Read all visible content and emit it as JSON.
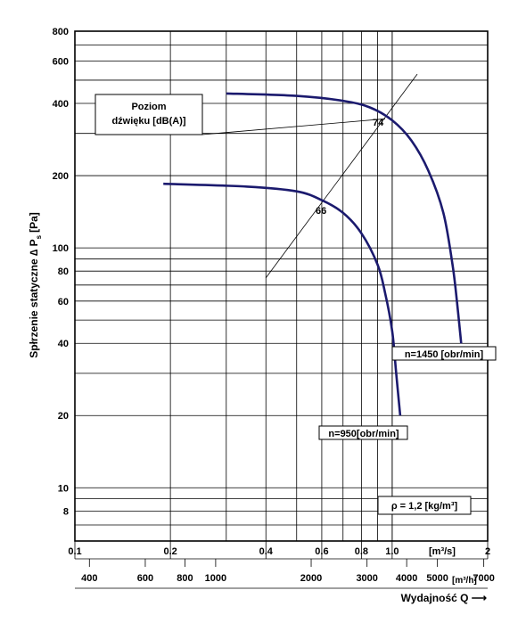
{
  "chart_data": {
    "type": "line",
    "ylabel_main": "Spłrzenie statyczne ∆ P",
    "ylabel_sub": "s",
    "ylabel_unit": "[Pa]",
    "xlabel": "Wydajność Q ⟶",
    "x_unit_top": "[m³/s]",
    "x_unit_bottom": "[m³/h]",
    "y_scale": "log",
    "x_scale": "log",
    "ylim": [
      6,
      800
    ],
    "xlim": [
      0.1,
      2
    ],
    "y_ticks": [
      "800",
      "600",
      "400",
      "200",
      "100",
      "80",
      "60",
      "40",
      "20",
      "10",
      "8"
    ],
    "x_ticks_top": [
      "0.1",
      "0.2",
      "0.4",
      "0.6",
      "0.8",
      "1.0",
      "2"
    ],
    "x_ticks_bottom": [
      "400",
      "600",
      "800",
      "1000",
      "2000",
      "3000",
      "4000",
      "5000",
      "7000"
    ],
    "series": [
      {
        "name": "n=1450 [obr/min]",
        "color": "#1b1a6e",
        "points": [
          [
            0.3,
            440
          ],
          [
            0.5,
            430
          ],
          [
            0.7,
            410
          ],
          [
            0.85,
            385
          ],
          [
            1.0,
            340
          ],
          [
            1.15,
            280
          ],
          [
            1.3,
            210
          ],
          [
            1.45,
            140
          ],
          [
            1.55,
            85
          ],
          [
            1.6,
            60
          ],
          [
            1.65,
            40
          ]
        ]
      },
      {
        "name": "n=950[obr/min]",
        "color": "#1b1a6e",
        "points": [
          [
            0.19,
            185
          ],
          [
            0.35,
            180
          ],
          [
            0.5,
            172
          ],
          [
            0.6,
            158
          ],
          [
            0.7,
            140
          ],
          [
            0.8,
            115
          ],
          [
            0.9,
            85
          ],
          [
            0.95,
            65
          ],
          [
            1.0,
            45
          ],
          [
            1.03,
            30
          ],
          [
            1.06,
            20
          ]
        ]
      }
    ],
    "annotations": {
      "sound_label_line1": "Poziom",
      "sound_label_line2": "dźwięku [dB(A)]",
      "sound_value_high": "74",
      "sound_value_low": "66",
      "density": "ρ = 1,2 [kg/m³]"
    },
    "grid": true
  }
}
